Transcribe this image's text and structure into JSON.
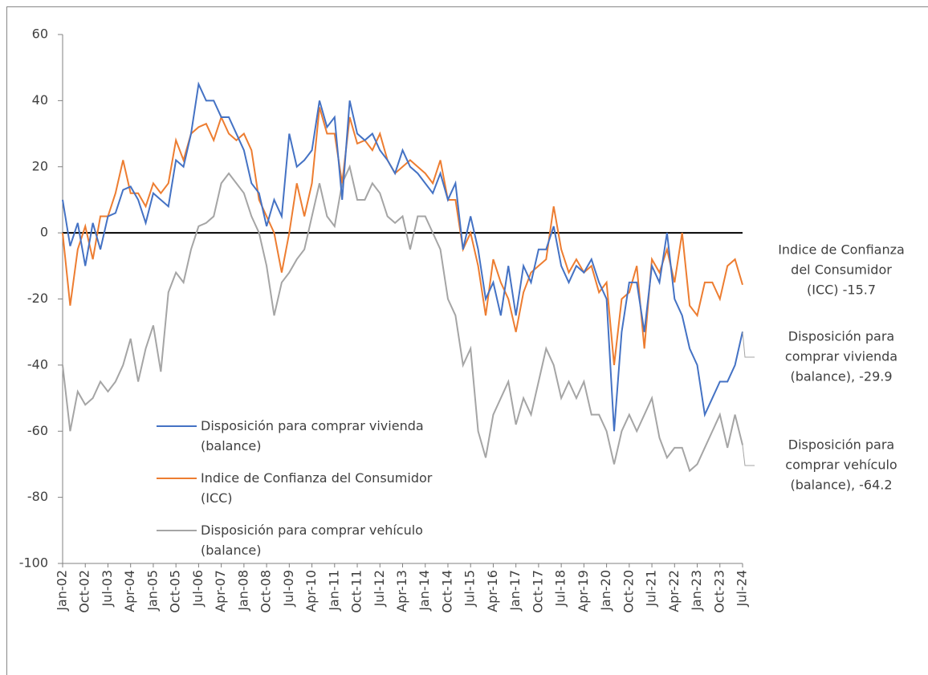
{
  "chart_data": {
    "type": "line",
    "categories": [
      "Jan-02",
      null,
      null,
      "Oct-02",
      null,
      null,
      "Jul-03",
      null,
      null,
      "Apr-04",
      null,
      null,
      "Jan-05",
      null,
      null,
      "Oct-05",
      null,
      null,
      "Jul-06",
      null,
      null,
      "Apr-07",
      null,
      null,
      "Jan-08",
      null,
      null,
      "Oct-08",
      null,
      null,
      "Jul-09",
      null,
      null,
      "Apr-10",
      null,
      null,
      "Jan-11",
      null,
      null,
      "Oct-11",
      null,
      null,
      "Jul-12",
      null,
      null,
      "Apr-13",
      null,
      null,
      "Jan-14",
      null,
      null,
      "Oct-14",
      null,
      null,
      "Jul-15",
      null,
      null,
      "Apr-16",
      null,
      null,
      "Jan-17",
      null,
      null,
      "Oct-17",
      null,
      null,
      "Jul-18",
      null,
      null,
      "Apr-19",
      null,
      null,
      "Jan-20",
      null,
      null,
      "Oct-20",
      null,
      null,
      "Jul-21",
      null,
      null,
      "Apr-22",
      null,
      null,
      "Jan-23",
      null,
      null,
      "Oct-23",
      null,
      null,
      "Jul-24"
    ],
    "series": [
      {
        "name": "Disposición para comprar vivienda (balance)",
        "color": "#4472c4",
        "values": [
          10,
          -4,
          3,
          -10,
          3,
          -5,
          5,
          6,
          13,
          14,
          10,
          3,
          12,
          10,
          8,
          22,
          20,
          30,
          45,
          40,
          40,
          35,
          35,
          30,
          25,
          15,
          12,
          2,
          10,
          5,
          30,
          20,
          22,
          25,
          40,
          32,
          35,
          10,
          40,
          30,
          28,
          30,
          25,
          22,
          18,
          25,
          20,
          18,
          15,
          12,
          18,
          10,
          15,
          -5,
          5,
          -5,
          -20,
          -15,
          -25,
          -10,
          -25,
          -10,
          -15,
          -5,
          -5,
          2,
          -10,
          -15,
          -10,
          -12,
          -8,
          -15,
          -20,
          -60,
          -30,
          -15,
          -15,
          -30,
          -10,
          -15,
          0,
          -20,
          -25,
          -35,
          -40,
          -55,
          -50,
          -45,
          -45,
          -40,
          -29.9
        ]
      },
      {
        "name": "Indice de Confianza del Consumidor (ICC)",
        "color": "#ed7d31",
        "values": [
          0,
          -22,
          -5,
          2,
          -8,
          5,
          5,
          12,
          22,
          12,
          12,
          8,
          15,
          12,
          15,
          28,
          22,
          30,
          32,
          33,
          28,
          35,
          30,
          28,
          30,
          25,
          10,
          5,
          0,
          -12,
          0,
          15,
          5,
          15,
          38,
          30,
          30,
          15,
          35,
          27,
          28,
          25,
          30,
          22,
          18,
          20,
          22,
          20,
          18,
          15,
          22,
          10,
          10,
          -5,
          0,
          -10,
          -25,
          -8,
          -15,
          -20,
          -30,
          -18,
          -12,
          -10,
          -8,
          8,
          -5,
          -12,
          -8,
          -12,
          -10,
          -18,
          -15,
          -40,
          -20,
          -18,
          -10,
          -35,
          -8,
          -12,
          -5,
          -15,
          0,
          -22,
          -25,
          -15,
          -15,
          -20,
          -10,
          -8,
          -15.7
        ]
      },
      {
        "name": "Disposición para comprar vehículo (balance)",
        "color": "#a5a5a5",
        "values": [
          -40,
          -60,
          -48,
          -52,
          -50,
          -45,
          -48,
          -45,
          -40,
          -32,
          -45,
          -35,
          -28,
          -42,
          -18,
          -12,
          -15,
          -5,
          2,
          3,
          5,
          15,
          18,
          15,
          12,
          5,
          0,
          -10,
          -25,
          -15,
          -12,
          -8,
          -5,
          5,
          15,
          5,
          2,
          15,
          20,
          10,
          10,
          15,
          12,
          5,
          3,
          5,
          -5,
          5,
          5,
          0,
          -5,
          -20,
          -25,
          -40,
          -35,
          -60,
          -68,
          -55,
          -50,
          -45,
          -58,
          -50,
          -55,
          -45,
          -35,
          -40,
          -50,
          -45,
          -50,
          -45,
          -55,
          -55,
          -60,
          -70,
          -60,
          -55,
          -60,
          -55,
          -50,
          -62,
          -68,
          -65,
          -65,
          -72,
          -70,
          -65,
          -60,
          -55,
          -65,
          -55,
          -64.2
        ]
      }
    ],
    "annotations": [
      {
        "lines": [
          "Indice de Confianza",
          "del Consumidor",
          "(ICC) -15.7"
        ]
      },
      {
        "lines": [
          "Disposición para",
          "comprar vivienda",
          "(balance), -29.9"
        ]
      },
      {
        "lines": [
          "Disposición para",
          "comprar vehículo",
          "(balance), -64.2"
        ]
      }
    ],
    "ylim": [
      -100,
      60
    ],
    "yticks": [
      -100,
      -80,
      -60,
      -40,
      -20,
      0,
      20,
      40,
      60
    ]
  }
}
